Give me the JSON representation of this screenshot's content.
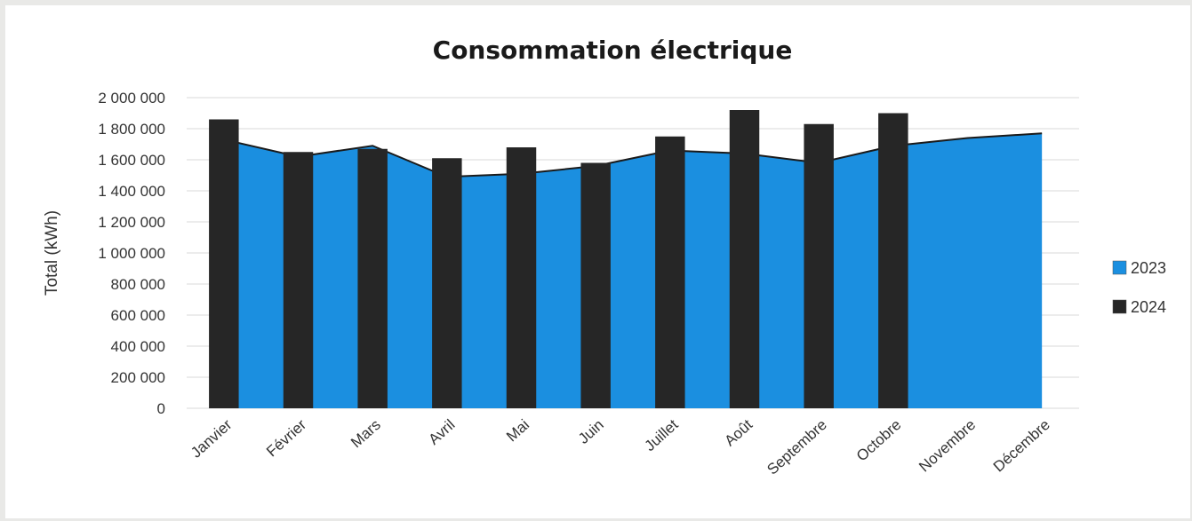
{
  "chart_data": {
    "type": "bar",
    "title": "Consommation électrique",
    "ylabel": "Total (kWh)",
    "xlabel": "",
    "ylim": [
      0,
      2000000
    ],
    "yticks": [
      0,
      200000,
      400000,
      600000,
      800000,
      1000000,
      1200000,
      1400000,
      1600000,
      1800000,
      2000000
    ],
    "ytick_labels": [
      "0",
      "200 000",
      "400 000",
      "600 000",
      "800 000",
      "1 000 000",
      "1 200 000",
      "1 400 000",
      "1 600 000",
      "1 800 000",
      "2 000 000"
    ],
    "categories": [
      "Janvier",
      "Février",
      "Mars",
      "Avril",
      "Mai",
      "Juin",
      "Juillet",
      "Août",
      "Septembre",
      "Octobre",
      "Novembre",
      "Décembre"
    ],
    "series": [
      {
        "name": "2023",
        "type": "area",
        "color": "#1b8fe0",
        "values": [
          1730000,
          1620000,
          1690000,
          1490000,
          1510000,
          1560000,
          1660000,
          1640000,
          1580000,
          1690000,
          1740000,
          1770000
        ]
      },
      {
        "name": "2024",
        "type": "bar",
        "color": "#262626",
        "values": [
          1860000,
          1650000,
          1670000,
          1610000,
          1680000,
          1580000,
          1750000,
          1920000,
          1830000,
          1900000,
          null,
          null
        ]
      }
    ],
    "grid": true,
    "legend": "right"
  }
}
